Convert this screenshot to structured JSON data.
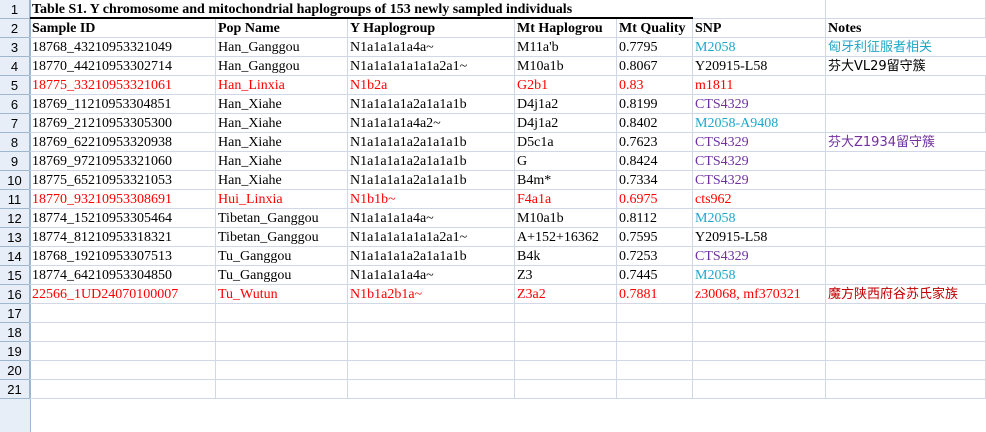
{
  "title": "Table S1. Y chromosome and mitochondrial haplogroups of 153 newly sampled individuals",
  "headers": [
    "Sample ID",
    "Pop Name",
    "Y Haplogroup",
    "Mt Haplogrou",
    "Mt Quality",
    "SNP",
    "Notes"
  ],
  "row_numbers": [
    "1",
    "2",
    "3",
    "4",
    "5",
    "6",
    "7",
    "8",
    "9",
    "10",
    "11",
    "12",
    "13",
    "14",
    "15",
    "16",
    "17",
    "18",
    "19",
    "20",
    "21"
  ],
  "rows": [
    {
      "id": "18768_43210953321049",
      "pop": "Han_Ganggou",
      "y": "N1a1a1a1a4a~",
      "mt": "M11a'b",
      "q": "0.7795",
      "snp": "M2058",
      "note": "匈牙利征服者相关",
      "color": "dark",
      "snp_color": "teal",
      "note_color": "teal"
    },
    {
      "id": "18770_44210953302714",
      "pop": "Han_Ganggou",
      "y": "N1a1a1a1a1a1a2a1~",
      "mt": "M10a1b",
      "q": "0.8067",
      "snp": "Y20915-L58",
      "note": "芬大VL29留守簇",
      "color": "dark",
      "snp_color": "dark",
      "note_color": "dark"
    },
    {
      "id": "18775_33210953321061",
      "pop": "Han_Linxia",
      "y": "N1b2a",
      "mt": "G2b1",
      "q": "0.83",
      "snp": "m1811",
      "note": "",
      "color": "red",
      "snp_color": "red",
      "note_color": "dark"
    },
    {
      "id": "18769_11210953304851",
      "pop": "Han_Xiahe",
      "y": "N1a1a1a1a2a1a1a1b",
      "mt": "D4j1a2",
      "q": "0.8199",
      "snp": "CTS4329",
      "note": "",
      "color": "dark",
      "snp_color": "purple",
      "note_color": "dark"
    },
    {
      "id": "18769_21210953305300",
      "pop": "Han_Xiahe",
      "y": "N1a1a1a1a4a2~",
      "mt": "D4j1a2",
      "q": "0.8402",
      "snp": "M2058-A9408",
      "note": "",
      "color": "dark",
      "snp_color": "teal",
      "note_color": "dark"
    },
    {
      "id": "18769_62210953320938",
      "pop": "Han_Xiahe",
      "y": "N1a1a1a1a2a1a1a1b",
      "mt": "D5c1a",
      "q": "0.7623",
      "snp": "CTS4329",
      "note": "芬大Z1934留守簇",
      "color": "dark",
      "snp_color": "purple",
      "note_color": "purple"
    },
    {
      "id": "18769_97210953321060",
      "pop": "Han_Xiahe",
      "y": "N1a1a1a1a2a1a1a1b",
      "mt": "G",
      "q": "0.8424",
      "snp": "CTS4329",
      "note": "",
      "color": "dark",
      "snp_color": "purple",
      "note_color": "dark"
    },
    {
      "id": "18775_65210953321053",
      "pop": "Han_Xiahe",
      "y": "N1a1a1a1a2a1a1a1b",
      "mt": "B4m*",
      "q": "0.7334",
      "snp": "CTS4329",
      "note": "",
      "color": "dark",
      "snp_color": "purple",
      "note_color": "dark"
    },
    {
      "id": "18770_93210953308691",
      "pop": "Hui_Linxia",
      "y": "N1b1b~",
      "mt": "F4a1a",
      "q": "0.6975",
      "snp": "cts962",
      "note": "",
      "color": "red",
      "snp_color": "red",
      "note_color": "dark"
    },
    {
      "id": "18774_15210953305464",
      "pop": "Tibetan_Ganggou",
      "y": "N1a1a1a1a4a~",
      "mt": "M10a1b",
      "q": "0.8112",
      "snp": "M2058",
      "note": "",
      "color": "dark",
      "snp_color": "teal",
      "note_color": "dark"
    },
    {
      "id": "18774_81210953318321",
      "pop": "Tibetan_Ganggou",
      "y": "N1a1a1a1a1a1a2a1~",
      "mt": "A+152+16362",
      "q": "0.7595",
      "snp": "Y20915-L58",
      "note": "",
      "color": "dark",
      "snp_color": "dark",
      "note_color": "dark"
    },
    {
      "id": "18768_19210953307513",
      "pop": "Tu_Ganggou",
      "y": "N1a1a1a1a2a1a1a1b",
      "mt": "B4k",
      "q": "0.7253",
      "snp": "CTS4329",
      "note": "",
      "color": "dark",
      "snp_color": "purple",
      "note_color": "dark"
    },
    {
      "id": "18774_64210953304850",
      "pop": "Tu_Ganggou",
      "y": "N1a1a1a1a4a~",
      "mt": "Z3",
      "q": "0.7445",
      "snp": "M2058",
      "note": "",
      "color": "dark",
      "snp_color": "teal",
      "note_color": "dark"
    },
    {
      "id": "22566_1UD24070100007",
      "pop": "Tu_Wutun",
      "y": "N1b1a2b1a~",
      "mt": "Z3a2",
      "q": "0.7881",
      "snp": "z30068, mf370321",
      "note": "魔方陕西府谷苏氏家族",
      "color": "red",
      "snp_color": "red",
      "note_color": "darkred"
    }
  ]
}
